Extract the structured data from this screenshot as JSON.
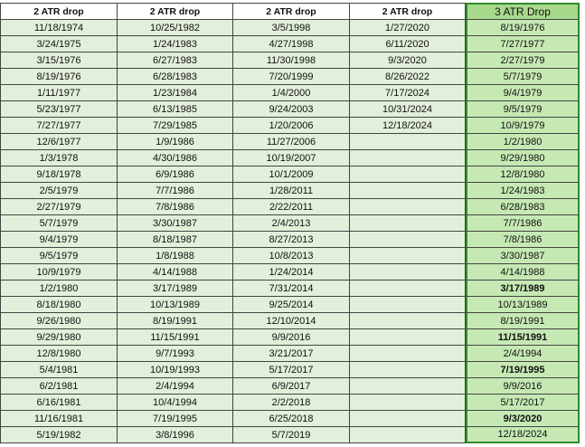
{
  "columns": [
    {
      "header": "2 ATR drop",
      "dates": [
        "11/18/1974",
        "3/24/1975",
        "3/15/1976",
        "8/19/1976",
        "1/11/1977",
        "5/23/1977",
        "7/27/1977",
        "12/6/1977",
        "1/3/1978",
        "9/18/1978",
        "2/5/1979",
        "2/27/1979",
        "5/7/1979",
        "9/4/1979",
        "9/5/1979",
        "10/9/1979",
        "1/2/1980",
        "8/18/1980",
        "9/26/1980",
        "9/29/1980",
        "12/8/1980",
        "5/4/1981",
        "6/2/1981",
        "6/16/1981",
        "11/16/1981",
        "5/19/1982"
      ]
    },
    {
      "header": "2 ATR drop",
      "dates": [
        "10/25/1982",
        "1/24/1983",
        "6/27/1983",
        "6/28/1983",
        "1/23/1984",
        "6/13/1985",
        "7/29/1985",
        "1/9/1986",
        "4/30/1986",
        "6/9/1986",
        "7/7/1986",
        "7/8/1986",
        "3/30/1987",
        "8/18/1987",
        "1/8/1988",
        "4/14/1988",
        "3/17/1989",
        "10/13/1989",
        "8/19/1991",
        "11/15/1991",
        "9/7/1993",
        "10/19/1993",
        "2/4/1994",
        "10/4/1994",
        "7/19/1995",
        "3/8/1996"
      ]
    },
    {
      "header": "2 ATR drop",
      "dates": [
        "3/5/1998",
        "4/27/1998",
        "11/30/1998",
        "7/20/1999",
        "1/4/2000",
        "9/24/2003",
        "1/20/2006",
        "11/27/2006",
        "10/19/2007",
        "10/1/2009",
        "1/28/2011",
        "2/22/2011",
        "2/4/2013",
        "8/27/2013",
        "10/8/2013",
        "1/24/2014",
        "7/31/2014",
        "9/25/2014",
        "12/10/2014",
        "9/9/2016",
        "3/21/2017",
        "5/17/2017",
        "6/9/2017",
        "2/2/2018",
        "6/25/2018",
        "5/7/2019"
      ]
    },
    {
      "header": "2 ATR drop",
      "dates": [
        "1/27/2020",
        "6/11/2020",
        "9/3/2020",
        "8/26/2022",
        "7/17/2024",
        "10/31/2024",
        "12/18/2024"
      ]
    },
    {
      "header": "3 ATR Drop",
      "dates": [
        "8/19/1976",
        "7/27/1977",
        "2/27/1979",
        "5/7/1979",
        "9/4/1979",
        "9/5/1979",
        "10/9/1979",
        "1/2/1980",
        "9/29/1980",
        "12/8/1980",
        "1/24/1983",
        "6/28/1983",
        "7/7/1986",
        "7/8/1986",
        "3/30/1987",
        "4/14/1988",
        "3/17/1989",
        "10/13/1989",
        "8/19/1991",
        "11/15/1991",
        "2/4/1994",
        "7/19/1995",
        "9/9/2016",
        "5/17/2017",
        "9/3/2020",
        "12/18/2024"
      ],
      "bold": [
        16,
        19,
        21,
        24
      ]
    }
  ]
}
